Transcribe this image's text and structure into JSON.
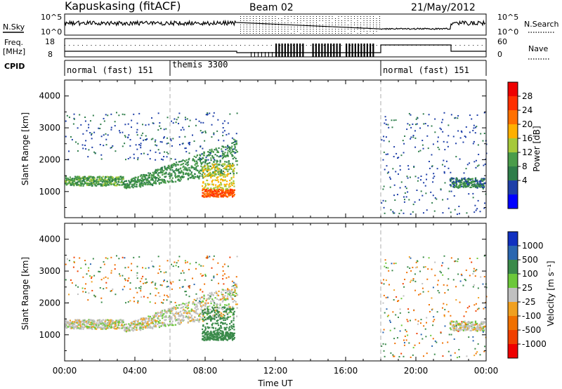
{
  "header": {
    "station": "Kapuskasing (fitACF)",
    "beam": "Beam 02",
    "date": "21/May/2012"
  },
  "top_panels": {
    "nsky_label": "N.Sky",
    "nsky_ticks": [
      "10^5",
      "10^0"
    ],
    "nsearch_label": "N.Search",
    "nsearch_ticks": [
      "10^5",
      "10^0"
    ],
    "freq_label_1": "Freq.",
    "freq_label_2": "[MHz]",
    "freq_ticks": [
      "18",
      "8"
    ],
    "nave_label": "Nave",
    "nave_ticks": [
      "60",
      "0"
    ],
    "cpid_label": "CPID",
    "cpid_modes": [
      {
        "label": "normal (fast) 151",
        "start_h": 0,
        "end_h": 6
      },
      {
        "label": "themis 3300",
        "start_h": 6,
        "end_h": 18
      },
      {
        "label": "normal (fast) 151",
        "start_h": 18,
        "end_h": 24
      }
    ]
  },
  "x_axis": {
    "label": "Time UT",
    "ticks": [
      "00:00",
      "04:00",
      "08:00",
      "12:00",
      "16:00",
      "20:00",
      "00:00"
    ]
  },
  "power_panel": {
    "ylabel": "Slant Range [km]",
    "yticks": [
      "1000",
      "2000",
      "3000",
      "4000"
    ],
    "colorbar_label": "Power [dB]",
    "colorbar_ticks": [
      "4",
      "8",
      "12",
      "16",
      "20",
      "24",
      "28"
    ],
    "colors": [
      "#0000ff",
      "#1e3fa8",
      "#2e7d4a",
      "#4a9c4a",
      "#a6c93a",
      "#ffb000",
      "#ff7000",
      "#ff3000",
      "#ee0000"
    ]
  },
  "velocity_panel": {
    "ylabel": "Slant Range [km]",
    "yticks": [
      "1000",
      "2000",
      "3000",
      "4000"
    ],
    "colorbar_label": "Velocity [m s⁻¹]",
    "colorbar_ticks": [
      "1000",
      "500",
      "100",
      "25",
      "-25",
      "-100",
      "-500",
      "-1000"
    ],
    "colors": [
      "#1030c0",
      "#2a66b0",
      "#3a8a4a",
      "#6cc83a",
      "#c0c0c0",
      "#f0a020",
      "#f07000",
      "#f04000",
      "#ee0000"
    ]
  },
  "chart_data": {
    "type": "heatmap",
    "title": "Kapuskasing (fitACF) Beam 02 21/May/2012",
    "xlabel": "Time UT",
    "ylabel": "Slant Range [km]",
    "xlim_hours": [
      0,
      24
    ],
    "ylim_km": [
      180,
      4500
    ],
    "power_colorbar_db": [
      4,
      8,
      12,
      16,
      20,
      24,
      28
    ],
    "velocity_colorbar_ms": [
      1000,
      500,
      100,
      25,
      -25,
      -100,
      -500,
      -1000
    ],
    "echo_regions": [
      {
        "t_start": 0.0,
        "t_end": 3.3,
        "range_min_km": 1200,
        "range_max_km": 1500,
        "power_db": 12,
        "velocity_ms": 0
      },
      {
        "t_start": 3.3,
        "t_end": 9.7,
        "range_min_km": 1100,
        "range_max_km": 2600,
        "power_db": 10,
        "velocity_ms": 0
      },
      {
        "t_start": 7.8,
        "t_end": 9.6,
        "range_min_km": 850,
        "range_max_km": 1100,
        "power_db": 26,
        "velocity_ms": 150
      },
      {
        "t_start": 7.8,
        "t_end": 9.6,
        "range_min_km": 1100,
        "range_max_km": 1900,
        "power_db": 18,
        "velocity_ms": 150
      },
      {
        "t_start": 21.9,
        "t_end": 23.9,
        "range_min_km": 1150,
        "range_max_km": 1450,
        "power_db": 8,
        "velocity_ms": 0
      }
    ],
    "mode_boundaries_h": [
      6,
      18
    ],
    "blank_interval_h": [
      9.8,
      18
    ]
  }
}
